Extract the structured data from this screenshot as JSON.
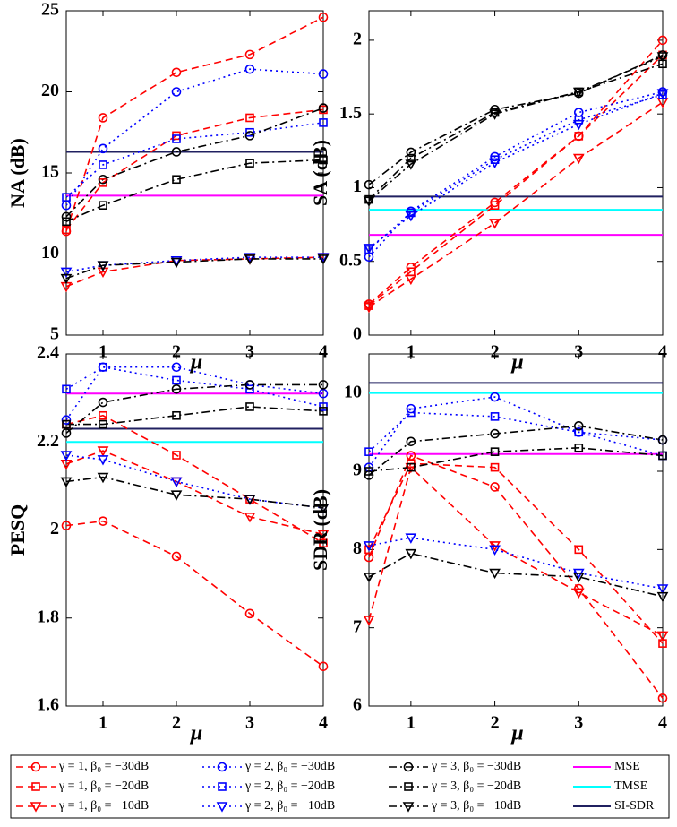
{
  "legend": [
    {
      "name": "γ = 1, β₀ = −30dB",
      "color": "#ff0000",
      "dash": "dashed",
      "marker": "circle"
    },
    {
      "name": "γ = 1, β₀ = −20dB",
      "color": "#ff0000",
      "dash": "dashed",
      "marker": "square"
    },
    {
      "name": "γ = 1, β₀ = −10dB",
      "color": "#ff0000",
      "dash": "dashed",
      "marker": "triangle-down"
    },
    {
      "name": "γ = 2, β₀ = −30dB",
      "color": "#0000ff",
      "dash": "dotted",
      "marker": "circle"
    },
    {
      "name": "γ = 2, β₀ = −20dB",
      "color": "#0000ff",
      "dash": "dotted",
      "marker": "square"
    },
    {
      "name": "γ = 2, β₀ = −10dB",
      "color": "#0000ff",
      "dash": "dotted",
      "marker": "triangle-down"
    },
    {
      "name": "γ = 3, β₀ = −30dB",
      "color": "#000000",
      "dash": "dashdot",
      "marker": "circle"
    },
    {
      "name": "γ = 3, β₀ = −20dB",
      "color": "#000000",
      "dash": "dashdot",
      "marker": "square"
    },
    {
      "name": "γ = 3, β₀ = −10dB",
      "color": "#000000",
      "dash": "dashdot",
      "marker": "triangle-down"
    },
    {
      "name": "MSE",
      "color": "#ff00ff",
      "dash": "solid",
      "marker": "none"
    },
    {
      "name": "TMSE",
      "color": "#00ffff",
      "dash": "solid",
      "marker": "none"
    },
    {
      "name": "SI-SDR",
      "color": "#202060",
      "dash": "solid",
      "marker": "none"
    }
  ],
  "chart_data": [
    {
      "type": "line",
      "ylabel": "NA (dB)",
      "xlabel": "μ",
      "x": [
        0.5,
        1,
        2,
        3,
        4
      ],
      "xlim": [
        0.5,
        4
      ],
      "xticks": [
        1,
        2,
        3,
        4
      ],
      "ylim": [
        5,
        25
      ],
      "yticks": [
        5,
        10,
        15,
        20,
        25
      ],
      "series": [
        {
          "values": [
            11.4,
            18.4,
            21.2,
            22.3,
            24.6
          ]
        },
        {
          "values": [
            11.5,
            14.4,
            17.3,
            18.4,
            18.9
          ]
        },
        {
          "values": [
            8.0,
            8.9,
            9.6,
            9.7,
            9.8
          ]
        },
        {
          "values": [
            13.0,
            16.5,
            20.0,
            21.4,
            21.1
          ]
        },
        {
          "values": [
            13.5,
            15.5,
            17.1,
            17.5,
            18.1
          ]
        },
        {
          "values": [
            8.9,
            9.3,
            9.6,
            9.8,
            9.8
          ]
        },
        {
          "values": [
            12.3,
            14.6,
            16.3,
            17.3,
            19.0
          ]
        },
        {
          "values": [
            12.0,
            13.0,
            14.6,
            15.6,
            15.8
          ]
        },
        {
          "values": [
            8.5,
            9.3,
            9.5,
            9.7,
            9.7
          ]
        }
      ],
      "references": [
        13.6,
        16.3,
        16.3
      ]
    },
    {
      "type": "line",
      "ylabel": "SA (dB)",
      "xlabel": "μ",
      "x": [
        0.5,
        1,
        2,
        3,
        4
      ],
      "xlim": [
        0.5,
        4
      ],
      "xticks": [
        1,
        2,
        3,
        4
      ],
      "ylim": [
        0,
        2.2
      ],
      "yticks": [
        0,
        0.5,
        1,
        1.5,
        2
      ],
      "series": [
        {
          "values": [
            0.21,
            0.46,
            0.9,
            1.35,
            2.0
          ]
        },
        {
          "values": [
            0.2,
            0.43,
            0.88,
            1.35,
            1.9
          ]
        },
        {
          "values": [
            0.19,
            0.38,
            0.76,
            1.2,
            1.58
          ]
        },
        {
          "values": [
            0.53,
            0.84,
            1.21,
            1.51,
            1.65
          ]
        },
        {
          "values": [
            0.58,
            0.83,
            1.19,
            1.46,
            1.63
          ]
        },
        {
          "values": [
            0.59,
            0.81,
            1.17,
            1.43,
            1.64
          ]
        },
        {
          "values": [
            1.02,
            1.24,
            1.53,
            1.64,
            1.9
          ]
        },
        {
          "values": [
            0.92,
            1.2,
            1.51,
            1.65,
            1.84
          ]
        },
        {
          "values": [
            0.91,
            1.16,
            1.5,
            1.65,
            1.89
          ]
        }
      ],
      "references": [
        0.68,
        0.85,
        0.94
      ]
    },
    {
      "type": "line",
      "ylabel": "PESQ",
      "xlabel": "μ",
      "x": [
        0.5,
        1,
        2,
        3,
        4
      ],
      "xlim": [
        0.5,
        4
      ],
      "xticks": [
        1,
        2,
        3,
        4
      ],
      "ylim": [
        1.6,
        2.4
      ],
      "yticks": [
        1.6,
        1.8,
        2,
        2.2,
        2.4
      ],
      "series": [
        {
          "values": [
            2.01,
            2.02,
            1.94,
            1.81,
            1.69
          ]
        },
        {
          "values": [
            2.24,
            2.26,
            2.17,
            2.07,
            1.97
          ]
        },
        {
          "values": [
            2.15,
            2.18,
            2.11,
            2.03,
            1.99
          ]
        },
        {
          "values": [
            2.25,
            2.37,
            2.37,
            2.33,
            2.31
          ]
        },
        {
          "values": [
            2.32,
            2.37,
            2.34,
            2.32,
            2.28
          ]
        },
        {
          "values": [
            2.17,
            2.16,
            2.11,
            2.07,
            2.05
          ]
        },
        {
          "values": [
            2.22,
            2.29,
            2.32,
            2.33,
            2.33
          ]
        },
        {
          "values": [
            2.24,
            2.24,
            2.26,
            2.28,
            2.27
          ]
        },
        {
          "values": [
            2.11,
            2.12,
            2.08,
            2.07,
            2.05
          ]
        }
      ],
      "references": [
        2.31,
        2.2,
        2.23
      ]
    },
    {
      "type": "line",
      "ylabel": "SDR (dB)",
      "xlabel": "μ",
      "x": [
        0.5,
        1,
        2,
        3,
        4
      ],
      "xlim": [
        0.5,
        4
      ],
      "xticks": [
        1,
        2,
        3,
        4
      ],
      "ylim": [
        6,
        10.5
      ],
      "yticks": [
        6,
        7,
        8,
        9,
        10
      ],
      "series": [
        {
          "values": [
            7.9,
            9.2,
            8.8,
            7.5,
            6.1
          ]
        },
        {
          "values": [
            8.0,
            9.1,
            9.05,
            8.0,
            6.8
          ]
        },
        {
          "values": [
            7.1,
            9.05,
            8.05,
            7.45,
            6.9
          ]
        },
        {
          "values": [
            9.05,
            9.8,
            9.95,
            9.5,
            9.4
          ]
        },
        {
          "values": [
            9.25,
            9.75,
            9.7,
            9.5,
            9.2
          ]
        },
        {
          "values": [
            8.05,
            8.15,
            8.0,
            7.7,
            7.5
          ]
        },
        {
          "values": [
            8.95,
            9.38,
            9.48,
            9.58,
            9.4
          ]
        },
        {
          "values": [
            9.0,
            9.05,
            9.25,
            9.3,
            9.2
          ]
        },
        {
          "values": [
            7.65,
            7.95,
            7.7,
            7.65,
            7.4
          ]
        }
      ],
      "references": [
        9.22,
        10.0,
        10.13
      ]
    }
  ]
}
